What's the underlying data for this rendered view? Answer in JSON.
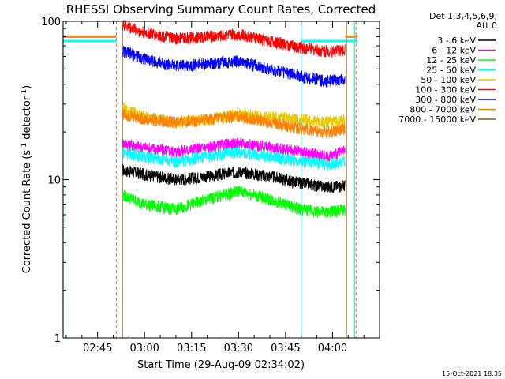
{
  "chart_data": {
    "type": "line",
    "title": "RHESSI Observing Summary Count Rates, Corrected",
    "xlabel": "Start Time (29-Aug-09 02:34:02)",
    "ylabel_parts": [
      "Corrected Count Rate (s",
      "-1",
      " detector",
      "-1",
      ")"
    ],
    "y_scale": "log",
    "ylim": [
      1,
      100
    ],
    "y_ticks": [
      {
        "v": 1,
        "label": "1"
      },
      {
        "v": 10,
        "label": "10"
      },
      {
        "v": 100,
        "label": "100"
      }
    ],
    "x_start_minutes": 34.0,
    "x_end_minutes": 94.0,
    "x_ticks": [
      {
        "m": 45,
        "label": "02:45"
      },
      {
        "m": 60,
        "label": "03:00"
      },
      {
        "m": 75,
        "label": "03:15"
      },
      {
        "m": 90,
        "label": "03:30"
      },
      {
        "m": 105,
        "label": "03:45"
      },
      {
        "m": 120,
        "label": "04:00"
      }
    ],
    "x_minor_step_minutes": 5,
    "plot_x_range_minutes": [
      34,
      135
    ],
    "legend_header": [
      "Det 1,3,4,5,6,9,",
      "Att 0"
    ],
    "legend_position": "right",
    "series": [
      {
        "name": "3 - 6 keV",
        "color": "#000000",
        "x": [
          53,
          60,
          70,
          80,
          90,
          100,
          110,
          118,
          124
        ],
        "y": [
          11.5,
          10.8,
          10.0,
          10.5,
          11.2,
          10.5,
          9.5,
          9.0,
          9.2
        ]
      },
      {
        "name": "6 - 12 keV",
        "color": "#ff00ff",
        "x": [
          53,
          60,
          70,
          80,
          90,
          100,
          110,
          118,
          124
        ],
        "y": [
          17,
          16,
          15,
          16,
          17,
          16,
          15,
          14,
          15
        ]
      },
      {
        "name": "12 - 25 keV",
        "color": "#00ff00",
        "x": [
          53,
          60,
          70,
          80,
          90,
          100,
          110,
          118,
          124
        ],
        "y": [
          8.0,
          7.0,
          6.5,
          7.5,
          8.5,
          7.5,
          6.5,
          6.2,
          6.5
        ]
      },
      {
        "name": "25 - 50 keV",
        "color": "#00ffff",
        "x": [
          53,
          60,
          70,
          80,
          90,
          100,
          110,
          118,
          124
        ],
        "y": [
          15,
          14,
          13,
          14,
          15,
          14,
          13,
          12.5,
          13
        ]
      },
      {
        "name": "50 - 100 keV",
        "color": "#e6c800",
        "x": [
          53,
          60,
          70,
          80,
          90,
          100,
          110,
          118,
          124
        ],
        "y": [
          28,
          25,
          23,
          24,
          26,
          25,
          24,
          23,
          24
        ]
      },
      {
        "name": "100 - 300 keV",
        "color": "#ff0000",
        "x": [
          53,
          60,
          70,
          80,
          90,
          100,
          110,
          118,
          124
        ],
        "y": [
          95,
          85,
          78,
          80,
          83,
          75,
          68,
          65,
          66
        ]
      },
      {
        "name": "300 - 800 keV",
        "color": "#0000ff",
        "x": [
          53,
          60,
          70,
          80,
          90,
          100,
          110,
          118,
          124
        ],
        "y": [
          65,
          58,
          52,
          54,
          56,
          50,
          45,
          42,
          43
        ]
      },
      {
        "name": "800 - 7000 keV",
        "color": "#ff8000",
        "x": [
          53,
          60,
          70,
          80,
          90,
          100,
          110,
          118,
          124
        ],
        "y": [
          26,
          24,
          23,
          24,
          25,
          23,
          21,
          20,
          21
        ]
      },
      {
        "name": "7000 - 15000 keV",
        "color": "#8b5a00",
        "x": [],
        "y": []
      }
    ],
    "attenuator_level": {
      "color": "#ff8000",
      "y": 80,
      "segments": [
        [
          34,
          51
        ],
        [
          124,
          128
        ]
      ]
    },
    "offline_level": {
      "color": "#00ffff",
      "y": 75,
      "segments": [
        [
          34,
          51
        ],
        [
          110,
          128
        ]
      ]
    },
    "vertical_markers": [
      {
        "color": "#00ffff",
        "m": 34,
        "style": "solid"
      },
      {
        "color": "#ff8000",
        "m": 51,
        "style": "dashed"
      },
      {
        "color": "#ff8000",
        "m": 53,
        "style": "solid"
      },
      {
        "color": "#00ffff",
        "m": 110,
        "style": "solid"
      },
      {
        "color": "#ff8000",
        "m": 124.5,
        "style": "solid"
      },
      {
        "color": "#00ffff",
        "m": 127,
        "style": "solid"
      },
      {
        "color": "#ff8000",
        "m": 127.5,
        "style": "dashed"
      }
    ]
  },
  "footer_date": "15-Oct-2021 18:35"
}
